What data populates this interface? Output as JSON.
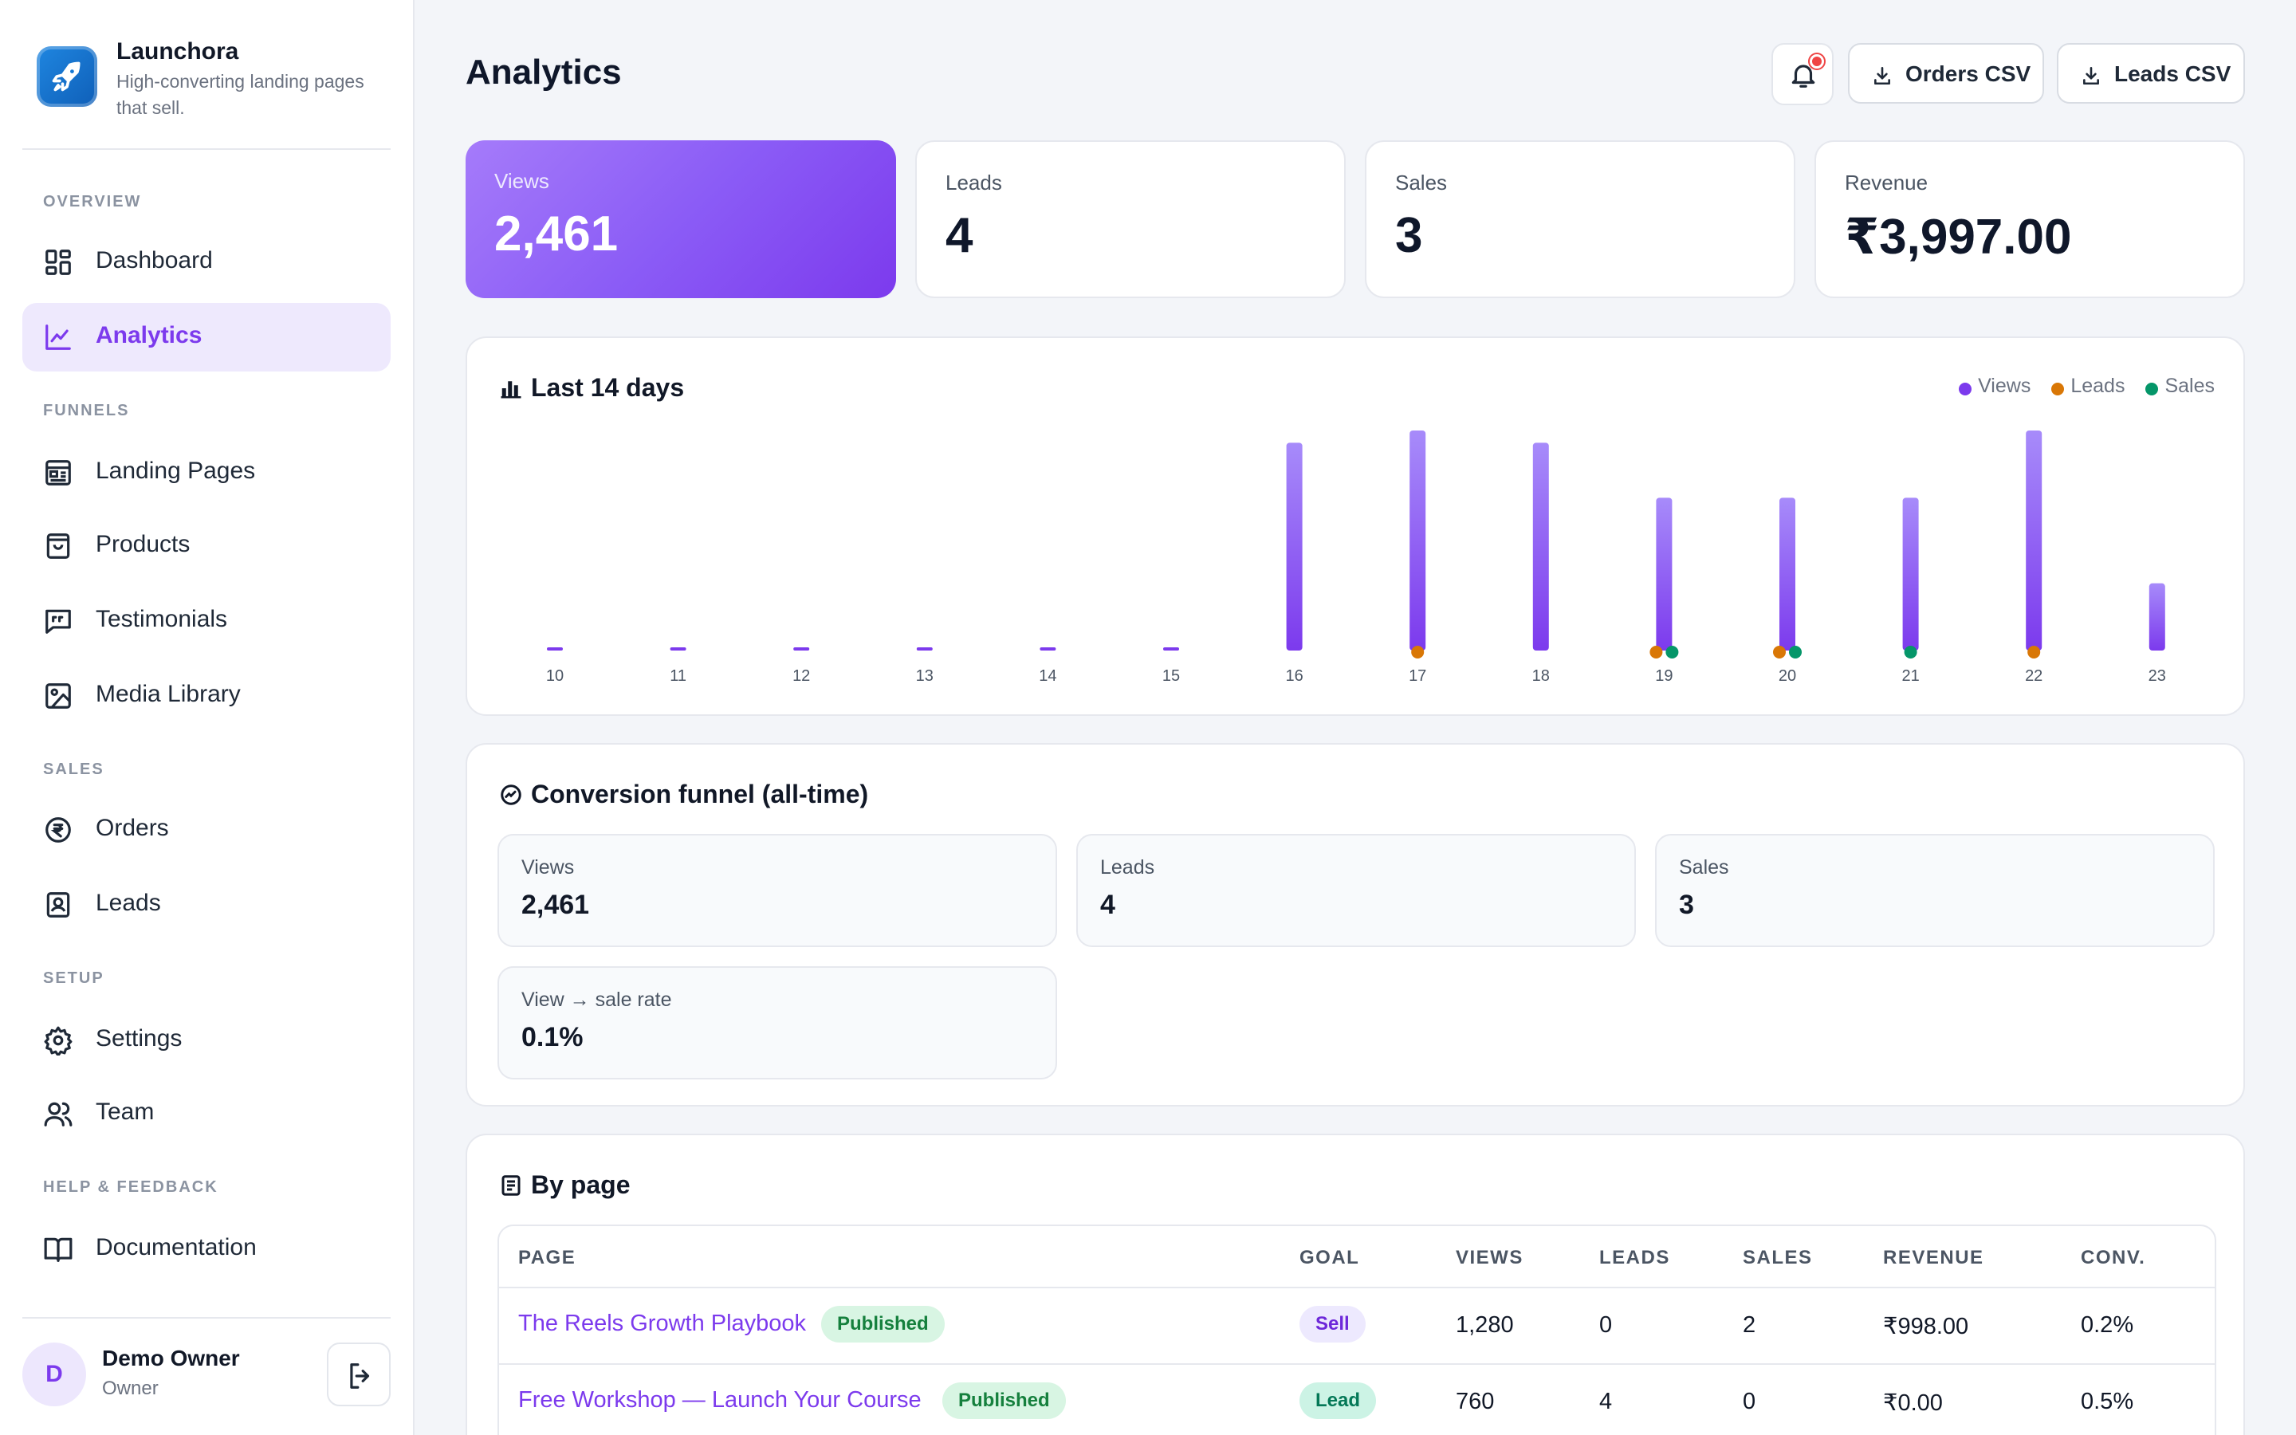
{
  "brand": {
    "name": "Launchora",
    "tagline": "High-converting landing pages that sell."
  },
  "sidebar": {
    "sections": {
      "overview": "OVERVIEW",
      "funnels": "FUNNELS",
      "sales": "SALES",
      "setup": "SETUP",
      "help": "HELP & FEEDBACK"
    },
    "items": {
      "dashboard": "Dashboard",
      "analytics": "Analytics",
      "landing_pages": "Landing Pages",
      "products": "Products",
      "testimonials": "Testimonials",
      "media_library": "Media Library",
      "orders": "Orders",
      "leads": "Leads",
      "settings": "Settings",
      "team": "Team",
      "documentation": "Documentation"
    },
    "active": "analytics",
    "user": {
      "initial": "D",
      "name": "Demo Owner",
      "role": "Owner"
    }
  },
  "header": {
    "title": "Analytics",
    "orders_csv": "Orders CSV",
    "leads_csv": "Leads CSV"
  },
  "stats": {
    "views": {
      "label": "Views",
      "value": "2,461"
    },
    "leads": {
      "label": "Leads",
      "value": "4"
    },
    "sales": {
      "label": "Sales",
      "value": "3"
    },
    "revenue": {
      "label": "Revenue",
      "value": "₹3,997.00"
    }
  },
  "chart_card": {
    "title": "Last 14 days",
    "legend": {
      "views": "Views",
      "leads": "Leads",
      "sales": "Sales"
    },
    "colors": {
      "views_top": "#a78bfa",
      "views_bottom": "#7c3aed",
      "leads": "#d97706",
      "sales": "#059669",
      "zero": "#7c3aed"
    }
  },
  "chart_data": {
    "type": "bar",
    "categories": [
      "10",
      "11",
      "12",
      "13",
      "14",
      "15",
      "16",
      "17",
      "18",
      "19",
      "20",
      "21",
      "22",
      "23"
    ],
    "series": [
      {
        "name": "Views",
        "values": [
          0,
          0,
          0,
          0,
          0,
          0,
          340,
          360,
          340,
          250,
          250,
          250,
          360,
          110
        ]
      },
      {
        "name": "Leads",
        "values": [
          0,
          0,
          0,
          0,
          0,
          0,
          0,
          1,
          0,
          1,
          1,
          0,
          1,
          0
        ]
      },
      {
        "name": "Sales",
        "values": [
          0,
          0,
          0,
          0,
          0,
          0,
          0,
          0,
          0,
          1,
          1,
          1,
          0,
          0
        ]
      }
    ],
    "legend_position": "top-right",
    "grid": false
  },
  "funnel": {
    "title": "Conversion funnel (all-time)",
    "views": {
      "label": "Views",
      "value": "2,461"
    },
    "leads": {
      "label": "Leads",
      "value": "4"
    },
    "sales": {
      "label": "Sales",
      "value": "3"
    },
    "rate": {
      "label": "View → sale rate",
      "value": "0.1%"
    }
  },
  "by_page": {
    "title": "By page",
    "columns": [
      "PAGE",
      "GOAL",
      "VIEWS",
      "LEADS",
      "SALES",
      "REVENUE",
      "CONV."
    ],
    "rows": [
      {
        "page": "The Reels Growth Playbook",
        "status": "Published",
        "goal": "Sell",
        "views": "1,280",
        "leads": "0",
        "sales": "2",
        "revenue": "₹998.00",
        "conv": "0.2%"
      },
      {
        "page": "Free Workshop — Launch Your Course",
        "status": "Published",
        "goal": "Lead",
        "views": "760",
        "leads": "4",
        "sales": "0",
        "revenue": "₹0.00",
        "conv": "0.5%"
      }
    ]
  }
}
